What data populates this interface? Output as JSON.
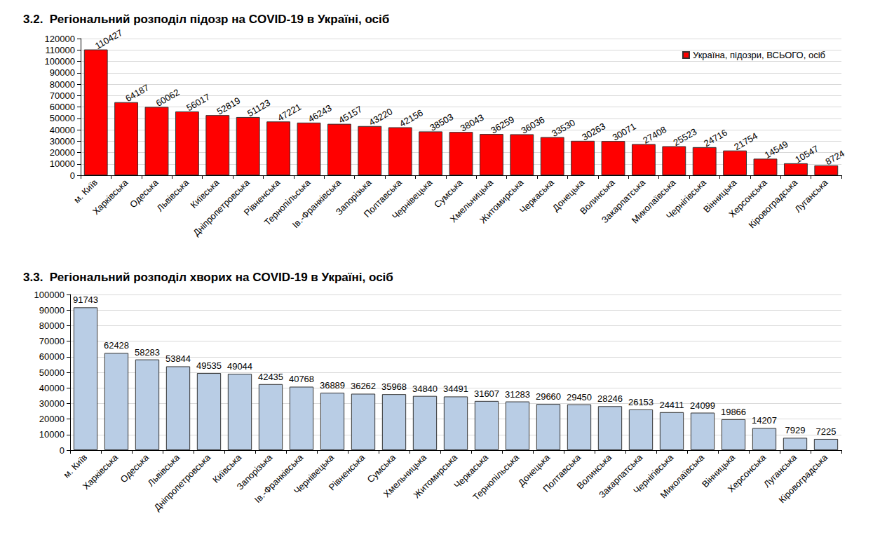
{
  "chart_data": [
    {
      "type": "bar",
      "title": "3.2.  Регіональний розподіл підозр на COVID-19 в Україні, осіб",
      "categories": [
        "м. Київ",
        "Харківська",
        "Одеська",
        "Львівська",
        "Київська",
        "Дніпропетровська",
        "Рівненська",
        "Тернопільська",
        "Ів.-Франківська",
        "Запорізька",
        "Полтавська",
        "Чернівецька",
        "Сумська",
        "Хмельницька",
        "Житомирська",
        "Черкаська",
        "Донецька",
        "Волинська",
        "Закарпатська",
        "Миколаївська",
        "Чернігівська",
        "Вінницька",
        "Херсонська",
        "Кіровоградська",
        "Луганська"
      ],
      "series": [
        {
          "name": "Україна, підозри, ВСЬОГО, осіб",
          "color": "#ff0000",
          "values": [
            110427,
            64187,
            60062,
            56017,
            52819,
            51123,
            47221,
            46243,
            45157,
            43220,
            42156,
            38503,
            38043,
            36259,
            36036,
            33530,
            30263,
            30071,
            27408,
            25523,
            24716,
            21754,
            14549,
            10547,
            8724
          ]
        }
      ],
      "ylim": [
        0,
        120000
      ],
      "yticks": [
        0,
        10000,
        20000,
        30000,
        40000,
        50000,
        60000,
        70000,
        80000,
        90000,
        100000,
        110000,
        120000
      ],
      "grid": true,
      "legend": "top-right",
      "data_labels": true
    },
    {
      "type": "bar",
      "title": "3.3.  Регіональний розподіл хворих на COVID-19 в Україні, осіб",
      "categories": [
        "м. Київ",
        "Харківська",
        "Одеська",
        "Львівська",
        "Дніпропетровська",
        "Київська",
        "Запорізька",
        "Ів.-Франківська",
        "Чернівецька",
        "Рівненська",
        "Сумська",
        "Хмельницька",
        "Житомирська",
        "Черкаська",
        "Тернопільська",
        "Донецька",
        "Полтавська",
        "Волинська",
        "Закарпатська",
        "Чернігівська",
        "Миколаївська",
        "Вінницька",
        "Херсонська",
        "Луганська",
        "Кіровоградська"
      ],
      "values": [
        91743,
        62428,
        58283,
        53844,
        49535,
        49044,
        42435,
        40768,
        36889,
        36262,
        35968,
        34840,
        34491,
        31607,
        31283,
        29660,
        29450,
        28246,
        26153,
        24411,
        24099,
        19866,
        14207,
        7929,
        7225
      ],
      "color": "#b9cde5",
      "ylim": [
        0,
        100000
      ],
      "yticks": [
        0,
        10000,
        20000,
        30000,
        40000,
        50000,
        60000,
        70000,
        80000,
        90000,
        100000
      ],
      "grid": true,
      "data_labels": true
    }
  ]
}
